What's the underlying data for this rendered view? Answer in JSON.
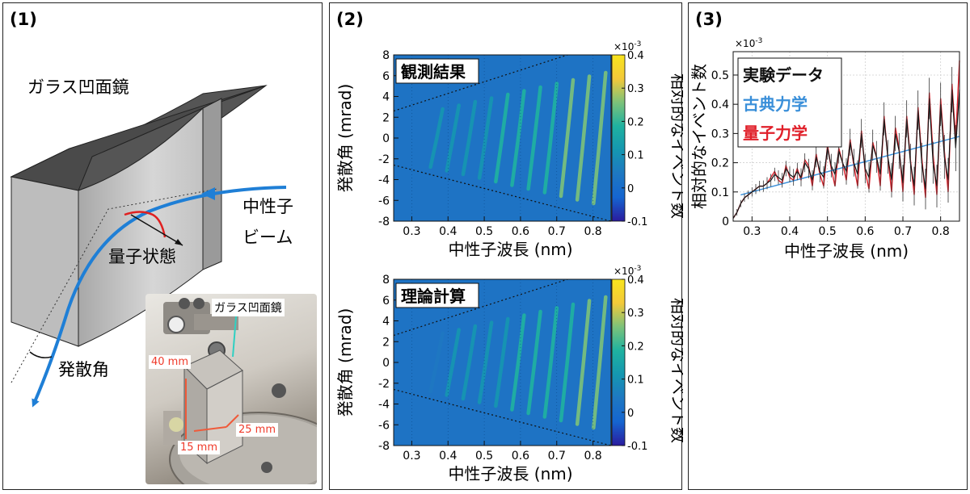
{
  "panel1": {
    "label": "(1)",
    "mirror_label": "ガラス凹面鏡",
    "beam_label_1": "中性子",
    "beam_label_2": "ビーム",
    "quantum_label": "量子状態",
    "angle_label": "発散角",
    "photo": {
      "mirror_label": "ガラス凹面鏡",
      "dim_height": "40 mm",
      "dim_width": "15 mm",
      "dim_depth": "25 mm"
    }
  },
  "panel2": {
    "label": "(2)",
    "colors": {
      "background": "#1e73c4",
      "colormap": [
        "#2a1b9e",
        "#1565d0",
        "#1e78c2",
        "#1597b0",
        "#1fb2a0",
        "#7cc27a",
        "#f3c93a",
        "#f8e41c"
      ]
    },
    "colorbar": {
      "multiplier": "×10",
      "exponent": "-3",
      "ticks": [
        "0.4",
        "0.3",
        "0.2",
        "0.1",
        "0",
        "-0.1"
      ],
      "label": "相対的なイベント数"
    },
    "top": {
      "title": "観測結果",
      "ylabel": "発散角 (mrad)",
      "xlabel": "中性子波長 (nm)",
      "xticks": [
        "0.3",
        "0.4",
        "0.5",
        "0.6",
        "0.7",
        "0.8"
      ],
      "yticks": [
        "8",
        "6",
        "4",
        "2",
        "0",
        "-2",
        "-4",
        "-6",
        "-8"
      ]
    },
    "bottom": {
      "title": "理論計算",
      "ylabel": "発散角 (mrad)",
      "xlabel": "中性子波長 (nm)",
      "xticks": [
        "0.3",
        "0.4",
        "0.5",
        "0.6",
        "0.7",
        "0.8"
      ],
      "yticks": [
        "8",
        "6",
        "4",
        "2",
        "0",
        "-2",
        "-4",
        "-6",
        "-8"
      ]
    }
  },
  "panel3": {
    "label": "(3)",
    "ylabel": "相対的なイベント数",
    "xlabel": "中性子波長 (nm)",
    "multiplier": "×10",
    "exponent": "-3",
    "xticks": [
      "0.3",
      "0.4",
      "0.5",
      "0.6",
      "0.7",
      "0.8"
    ],
    "yticks": [
      "0.5",
      "0.4",
      "0.3",
      "0.2",
      "0.1",
      "0"
    ],
    "legend": [
      {
        "label": "実験データ",
        "color": "#111111"
      },
      {
        "label": "古典力学",
        "color": "#3a8fd9"
      },
      {
        "label": "量子力学",
        "color": "#e0202a"
      }
    ]
  },
  "chart_data": [
    {
      "type": "heatmap",
      "title": "観測結果",
      "xlabel": "中性子波長 (nm)",
      "ylabel": "発散角 (mrad)",
      "xlim": [
        0.25,
        0.85
      ],
      "ylim": [
        -8,
        8
      ],
      "zlim": [
        -0.0001,
        0.0004
      ],
      "colorbar_label": "相対的なイベント数",
      "boundary_lines": [
        {
          "x": [
            0.25,
            0.73
          ],
          "y": [
            2.6,
            8
          ]
        },
        {
          "x": [
            0.25,
            0.85
          ],
          "y": [
            -2.6,
            -8
          ]
        }
      ],
      "fringe_centers_x": [
        0.365,
        0.41,
        0.455,
        0.5,
        0.545,
        0.59,
        0.635,
        0.68,
        0.725,
        0.77,
        0.815
      ],
      "fringe_amplitude": [
        8e-05,
        0.0001,
        0.00012,
        0.00014,
        0.00016,
        0.00018,
        0.0002,
        0.00022,
        0.00024,
        0.00026,
        0.00026
      ]
    },
    {
      "type": "heatmap",
      "title": "理論計算",
      "xlabel": "中性子波長 (nm)",
      "ylabel": "発散角 (mrad)",
      "xlim": [
        0.25,
        0.85
      ],
      "ylim": [
        -8,
        8
      ],
      "zlim": [
        -0.0001,
        0.0004
      ],
      "colorbar_label": "相対的なイベント数",
      "boundary_lines": [
        {
          "x": [
            0.25,
            0.73
          ],
          "y": [
            2.6,
            8
          ]
        },
        {
          "x": [
            0.25,
            0.85
          ],
          "y": [
            -2.6,
            -8
          ]
        }
      ],
      "fringe_centers_x": [
        0.365,
        0.41,
        0.455,
        0.5,
        0.545,
        0.59,
        0.635,
        0.68,
        0.725,
        0.77,
        0.815
      ],
      "fringe_amplitude": [
        6e-05,
        8e-05,
        0.0001,
        0.00012,
        0.00014,
        0.00016,
        0.00018,
        0.0002,
        0.00022,
        0.00024,
        0.00026
      ]
    },
    {
      "type": "line",
      "xlabel": "中性子波長 (nm)",
      "ylabel": "相対的なイベント数",
      "xlim": [
        0.25,
        0.85
      ],
      "ylim": [
        0,
        0.00058
      ],
      "grid": true,
      "legend_position": "top-left",
      "series": [
        {
          "name": "実験データ",
          "x": [
            0.25,
            0.26,
            0.27,
            0.28,
            0.29,
            0.3,
            0.31,
            0.32,
            0.33,
            0.34,
            0.35,
            0.36,
            0.37,
            0.38,
            0.39,
            0.4,
            0.41,
            0.42,
            0.43,
            0.44,
            0.45,
            0.46,
            0.47,
            0.48,
            0.49,
            0.5,
            0.51,
            0.52,
            0.53,
            0.54,
            0.55,
            0.56,
            0.57,
            0.58,
            0.59,
            0.6,
            0.61,
            0.62,
            0.63,
            0.64,
            0.65,
            0.66,
            0.67,
            0.68,
            0.69,
            0.7,
            0.71,
            0.72,
            0.73,
            0.74,
            0.75,
            0.76,
            0.77,
            0.78,
            0.79,
            0.8,
            0.81,
            0.82,
            0.83,
            0.84,
            0.85
          ],
          "y": [
            1e-05,
            3e-05,
            6e-05,
            8e-05,
            9e-05,
            0.0001,
            0.00011,
            0.00012,
            0.00012,
            0.00013,
            0.00014,
            0.00016,
            0.00015,
            0.00014,
            0.00018,
            0.00016,
            0.00015,
            0.00017,
            0.00015,
            0.0002,
            0.00018,
            0.00014,
            0.00022,
            0.00017,
            0.00015,
            0.00025,
            0.00019,
            0.00016,
            0.00024,
            0.0002,
            0.00017,
            0.00027,
            0.0002,
            0.00016,
            0.0003,
            0.00018,
            0.00015,
            0.00026,
            0.00022,
            0.00016,
            0.00035,
            0.00022,
            0.00014,
            0.0003,
            0.00024,
            0.00013,
            0.00035,
            0.0002,
            0.00012,
            0.00038,
            0.0002,
            0.00011,
            0.00042,
            0.0002,
            0.00012,
            0.0004,
            0.00022,
            0.00014,
            0.00045,
            0.00025,
            0.00045
          ]
        },
        {
          "name": "古典力学",
          "x": [
            0.27,
            0.85
          ],
          "y": [
            9e-05,
            0.00029
          ]
        },
        {
          "name": "量子力学",
          "x": [
            0.25,
            0.26,
            0.27,
            0.28,
            0.29,
            0.3,
            0.31,
            0.32,
            0.33,
            0.34,
            0.35,
            0.36,
            0.37,
            0.38,
            0.39,
            0.4,
            0.41,
            0.42,
            0.43,
            0.44,
            0.45,
            0.46,
            0.47,
            0.48,
            0.49,
            0.5,
            0.51,
            0.52,
            0.53,
            0.54,
            0.55,
            0.56,
            0.57,
            0.58,
            0.59,
            0.6,
            0.61,
            0.62,
            0.63,
            0.64,
            0.65,
            0.66,
            0.67,
            0.68,
            0.69,
            0.7,
            0.71,
            0.72,
            0.73,
            0.74,
            0.75,
            0.76,
            0.77,
            0.78,
            0.79,
            0.8,
            0.81,
            0.82,
            0.83,
            0.84,
            0.85
          ],
          "y": [
            1e-05,
            3e-05,
            6e-05,
            8e-05,
            9e-05,
            0.0001,
            0.00011,
            0.00012,
            0.00012,
            0.00013,
            0.00015,
            0.00017,
            0.00014,
            0.00013,
            0.00019,
            0.00015,
            0.00014,
            0.00018,
            0.00014,
            0.00021,
            0.00019,
            0.00012,
            0.00023,
            0.00016,
            0.00012,
            0.00026,
            0.00018,
            0.00012,
            0.00025,
            0.0002,
            0.00014,
            0.00028,
            0.00019,
            0.00012,
            0.00031,
            0.00017,
            0.00011,
            0.00027,
            0.00022,
            0.00012,
            0.00036,
            0.00022,
            0.0001,
            0.00032,
            0.00025,
            0.0001,
            0.00036,
            0.00021,
            9e-05,
            0.00039,
            0.00022,
            8e-05,
            0.00044,
            0.00023,
            9e-05,
            0.00042,
            0.00024,
            0.0001,
            0.00047,
            0.00028,
            0.00055
          ]
        }
      ]
    }
  ]
}
